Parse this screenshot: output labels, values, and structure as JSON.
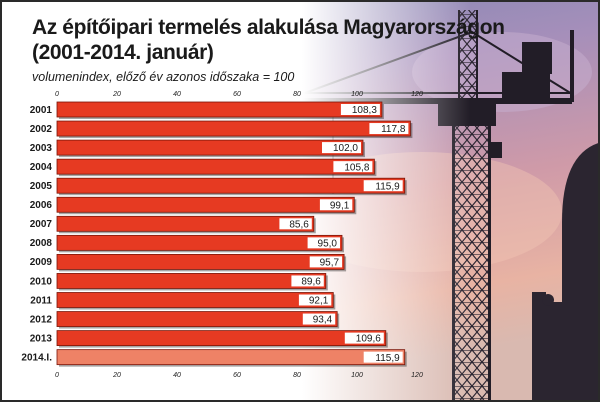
{
  "header": {
    "title_line1": "Az építőipari termelés alakulása Magyarországon",
    "title_line2": "(2001-2014. január)",
    "subtitle": "volumenindex, előző év azonos időszaka = 100"
  },
  "colors": {
    "bar": "#e63a22",
    "bar_last": "#ee8266",
    "bar_edge": "#7a1508",
    "label_box": "#ffffff",
    "text": "#1a1a1a"
  },
  "chart_data": {
    "type": "bar",
    "orientation": "horizontal",
    "categories": [
      "2001",
      "2002",
      "2003",
      "2004",
      "2005",
      "2006",
      "2007",
      "2008",
      "2009",
      "2010",
      "2011",
      "2012",
      "2013",
      "2014.I."
    ],
    "values": [
      108.3,
      117.8,
      102.0,
      105.8,
      115.9,
      99.1,
      85.6,
      95.0,
      95.7,
      89.6,
      92.1,
      93.4,
      109.6,
      115.9
    ],
    "value_labels": [
      "108,3",
      "117,8",
      "102,0",
      "105,8",
      "115,9",
      "99,1",
      "85,6",
      "95,0",
      "95,7",
      "89,6",
      "92,1",
      "93,4",
      "109,6",
      "115,9"
    ],
    "xlim": [
      0,
      120
    ],
    "ticks": [
      0,
      20,
      40,
      60,
      80,
      100,
      120
    ],
    "grid": false,
    "legend": "none"
  }
}
